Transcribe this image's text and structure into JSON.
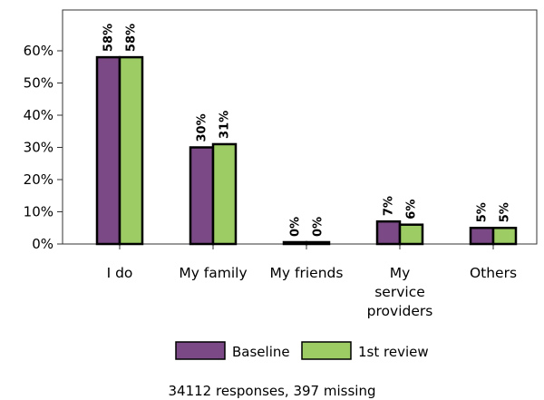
{
  "chart_data": {
    "type": "bar",
    "categories": [
      "I do",
      "My family",
      "My friends",
      "My service providers",
      "Others"
    ],
    "category_lines": [
      [
        "I do"
      ],
      [
        "My family"
      ],
      [
        "My friends"
      ],
      [
        "My",
        "service",
        "providers"
      ],
      [
        "Others"
      ]
    ],
    "series": [
      {
        "name": "Baseline",
        "values": [
          58,
          30,
          0,
          7,
          5
        ],
        "labels": [
          "58%",
          "30%",
          "0%",
          "7%",
          "5%"
        ],
        "color": "#7b4a86"
      },
      {
        "name": "1st review",
        "values": [
          58,
          31,
          0,
          6,
          5
        ],
        "labels": [
          "58%",
          "31%",
          "0%",
          "6%",
          "5%"
        ],
        "color": "#9ccc63"
      }
    ],
    "yticks": [
      0,
      10,
      20,
      30,
      40,
      50,
      60
    ],
    "ytick_labels": [
      "0%",
      "10%",
      "20%",
      "30%",
      "40%",
      "50%",
      "60%"
    ],
    "ylim": [
      0,
      60
    ],
    "title": "",
    "xlabel": "",
    "ylabel": "",
    "legend_position": "bottom",
    "grid": false
  },
  "footer": {
    "text": "34112 responses, 397 missing"
  }
}
